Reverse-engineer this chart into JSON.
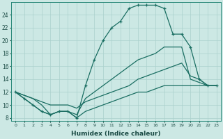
{
  "xlabel": "Humidex (Indice chaleur)",
  "background_color": "#cce8e4",
  "grid_color": "#aad0cc",
  "line_color": "#1a6e62",
  "xlim": [
    -0.5,
    23.5
  ],
  "ylim": [
    7.5,
    26
  ],
  "xticks": [
    0,
    1,
    2,
    3,
    4,
    5,
    6,
    7,
    8,
    9,
    10,
    11,
    12,
    13,
    14,
    15,
    16,
    17,
    18,
    19,
    20,
    21,
    22,
    23
  ],
  "yticks": [
    8,
    10,
    12,
    14,
    16,
    18,
    20,
    22,
    24
  ],
  "line1_x": [
    0,
    1,
    2,
    3,
    4,
    5,
    6,
    7,
    8,
    9,
    10,
    11,
    12,
    13,
    14,
    15,
    16,
    17,
    18,
    19,
    20,
    21,
    22,
    23
  ],
  "line1_y": [
    12,
    11,
    10,
    9,
    8.5,
    9,
    9,
    8,
    9,
    9.5,
    10,
    10.5,
    11,
    11.5,
    12,
    12,
    12.5,
    13,
    13,
    13,
    13,
    13,
    13,
    13
  ],
  "line2_x": [
    0,
    1,
    2,
    3,
    4,
    5,
    6,
    7,
    8,
    9,
    10,
    11,
    12,
    13,
    14,
    15,
    16,
    17,
    18,
    19,
    20,
    21,
    22,
    23
  ],
  "line2_y": [
    12,
    11.5,
    11,
    10,
    8.5,
    9,
    9,
    8.5,
    11,
    12,
    13,
    14,
    15,
    16,
    17,
    17.5,
    18,
    19,
    19,
    19,
    14,
    13.5,
    13,
    13
  ],
  "line3_x": [
    0,
    1,
    2,
    3,
    4,
    5,
    6,
    7,
    8,
    9,
    10,
    11,
    12,
    13,
    14,
    15,
    16,
    17,
    18,
    19,
    20,
    21,
    22,
    23
  ],
  "line3_y": [
    12,
    11,
    10,
    9,
    8.5,
    9,
    9,
    8,
    13,
    17,
    20,
    22,
    23,
    25,
    25.5,
    25.5,
    25.5,
    25,
    21,
    21,
    19,
    14,
    13,
    13
  ],
  "line4_x": [
    0,
    1,
    2,
    3,
    4,
    5,
    6,
    7,
    8,
    9,
    10,
    11,
    12,
    13,
    14,
    15,
    16,
    17,
    18,
    19,
    20,
    21,
    22,
    23
  ],
  "line4_y": [
    12,
    11.5,
    11,
    10.5,
    10,
    10,
    10,
    9.5,
    10.5,
    11,
    11.5,
    12,
    12.5,
    13,
    14,
    14.5,
    15,
    15.5,
    16,
    16.5,
    14.5,
    14,
    13,
    13
  ]
}
